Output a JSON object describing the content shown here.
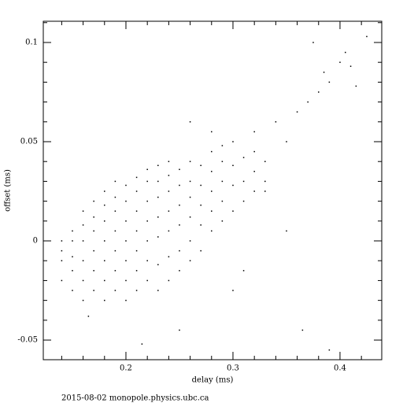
{
  "chart_data": {
    "type": "scatter",
    "x_label": "delay (ms)",
    "y_label": "offset (ms)",
    "footer": "2015-08-02  monopole.physics.ubc.ca",
    "color": "#000000",
    "xlim": [
      0.1228,
      0.439
    ],
    "ylim": [
      -0.0599,
      0.1107
    ],
    "xticks": [
      0.2,
      0.3,
      0.4
    ],
    "yticks": [
      -0.05,
      0,
      0.05,
      0.1
    ],
    "xminorticks": [
      0.14,
      0.16,
      0.18,
      0.22,
      0.24,
      0.26,
      0.28,
      0.32,
      0.34,
      0.36,
      0.38,
      0.42
    ],
    "yminorticks": [
      -0.04,
      -0.03,
      -0.02,
      -0.01,
      0.01,
      0.02,
      0.03,
      0.04,
      0.06,
      0.07,
      0.08,
      0.09,
      0.11
    ],
    "x": [
      0.14,
      0.14,
      0.14,
      0.14,
      0.15,
      0.15,
      0.15,
      0.15,
      0.15,
      0.16,
      0.16,
      0.16,
      0.16,
      0.16,
      0.16,
      0.17,
      0.17,
      0.17,
      0.17,
      0.17,
      0.17,
      0.18,
      0.18,
      0.18,
      0.18,
      0.18,
      0.18,
      0.18,
      0.19,
      0.19,
      0.19,
      0.19,
      0.19,
      0.19,
      0.19,
      0.2,
      0.2,
      0.2,
      0.2,
      0.2,
      0.2,
      0.2,
      0.21,
      0.21,
      0.21,
      0.21,
      0.21,
      0.21,
      0.21,
      0.22,
      0.22,
      0.22,
      0.22,
      0.22,
      0.22,
      0.22,
      0.23,
      0.23,
      0.23,
      0.23,
      0.23,
      0.23,
      0.23,
      0.24,
      0.24,
      0.24,
      0.24,
      0.24,
      0.24,
      0.24,
      0.25,
      0.25,
      0.25,
      0.25,
      0.25,
      0.25,
      0.26,
      0.26,
      0.26,
      0.26,
      0.26,
      0.26,
      0.27,
      0.27,
      0.27,
      0.27,
      0.27,
      0.28,
      0.28,
      0.28,
      0.28,
      0.28,
      0.29,
      0.29,
      0.29,
      0.29,
      0.29,
      0.3,
      0.3,
      0.3,
      0.3,
      0.31,
      0.31,
      0.31,
      0.32,
      0.32,
      0.32,
      0.32,
      0.33,
      0.33,
      0.34,
      0.35,
      0.36,
      0.37,
      0.38,
      0.385,
      0.39,
      0.4,
      0.405,
      0.41,
      0.425,
      0.375,
      0.415,
      0.3,
      0.31,
      0.365,
      0.39,
      0.215,
      0.165,
      0.25,
      0.35,
      0.33,
      0.26,
      0.28
    ],
    "values": [
      -0.02,
      -0.01,
      -0.005,
      0,
      -0.025,
      -0.015,
      -0.008,
      0,
      0.005,
      -0.03,
      -0.02,
      -0.01,
      0,
      0.008,
      0.015,
      -0.025,
      -0.015,
      -0.005,
      0.005,
      0.012,
      0.02,
      -0.03,
      -0.02,
      -0.01,
      0,
      0.01,
      0.018,
      0.025,
      -0.025,
      -0.015,
      -0.005,
      0.005,
      0.015,
      0.022,
      0.03,
      -0.03,
      -0.02,
      -0.01,
      0,
      0.01,
      0.02,
      0.028,
      -0.025,
      -0.015,
      -0.005,
      0.005,
      0.015,
      0.025,
      0.032,
      -0.02,
      -0.01,
      0,
      0.01,
      0.02,
      0.03,
      0.036,
      -0.025,
      -0.012,
      0.002,
      0.012,
      0.022,
      0.03,
      0.038,
      -0.02,
      -0.008,
      0.005,
      0.015,
      0.025,
      0.033,
      0.04,
      -0.015,
      -0.005,
      0.008,
      0.018,
      0.028,
      0.036,
      -0.01,
      0,
      0.012,
      0.022,
      0.03,
      0.04,
      -0.005,
      0.008,
      0.018,
      0.028,
      0.038,
      0.005,
      0.015,
      0.025,
      0.035,
      0.045,
      0.01,
      0.02,
      0.03,
      0.04,
      0.048,
      0.015,
      0.028,
      0.038,
      0.05,
      0.02,
      0.03,
      0.042,
      0.025,
      0.035,
      0.045,
      0.055,
      0.03,
      0.04,
      0.06,
      0.05,
      0.065,
      0.07,
      0.075,
      0.085,
      0.08,
      0.09,
      0.095,
      0.088,
      0.103,
      0.1,
      0.078,
      -0.025,
      -0.015,
      -0.045,
      -0.055,
      -0.052,
      -0.038,
      -0.045,
      0.005,
      0.025,
      0.06,
      0.055
    ]
  }
}
